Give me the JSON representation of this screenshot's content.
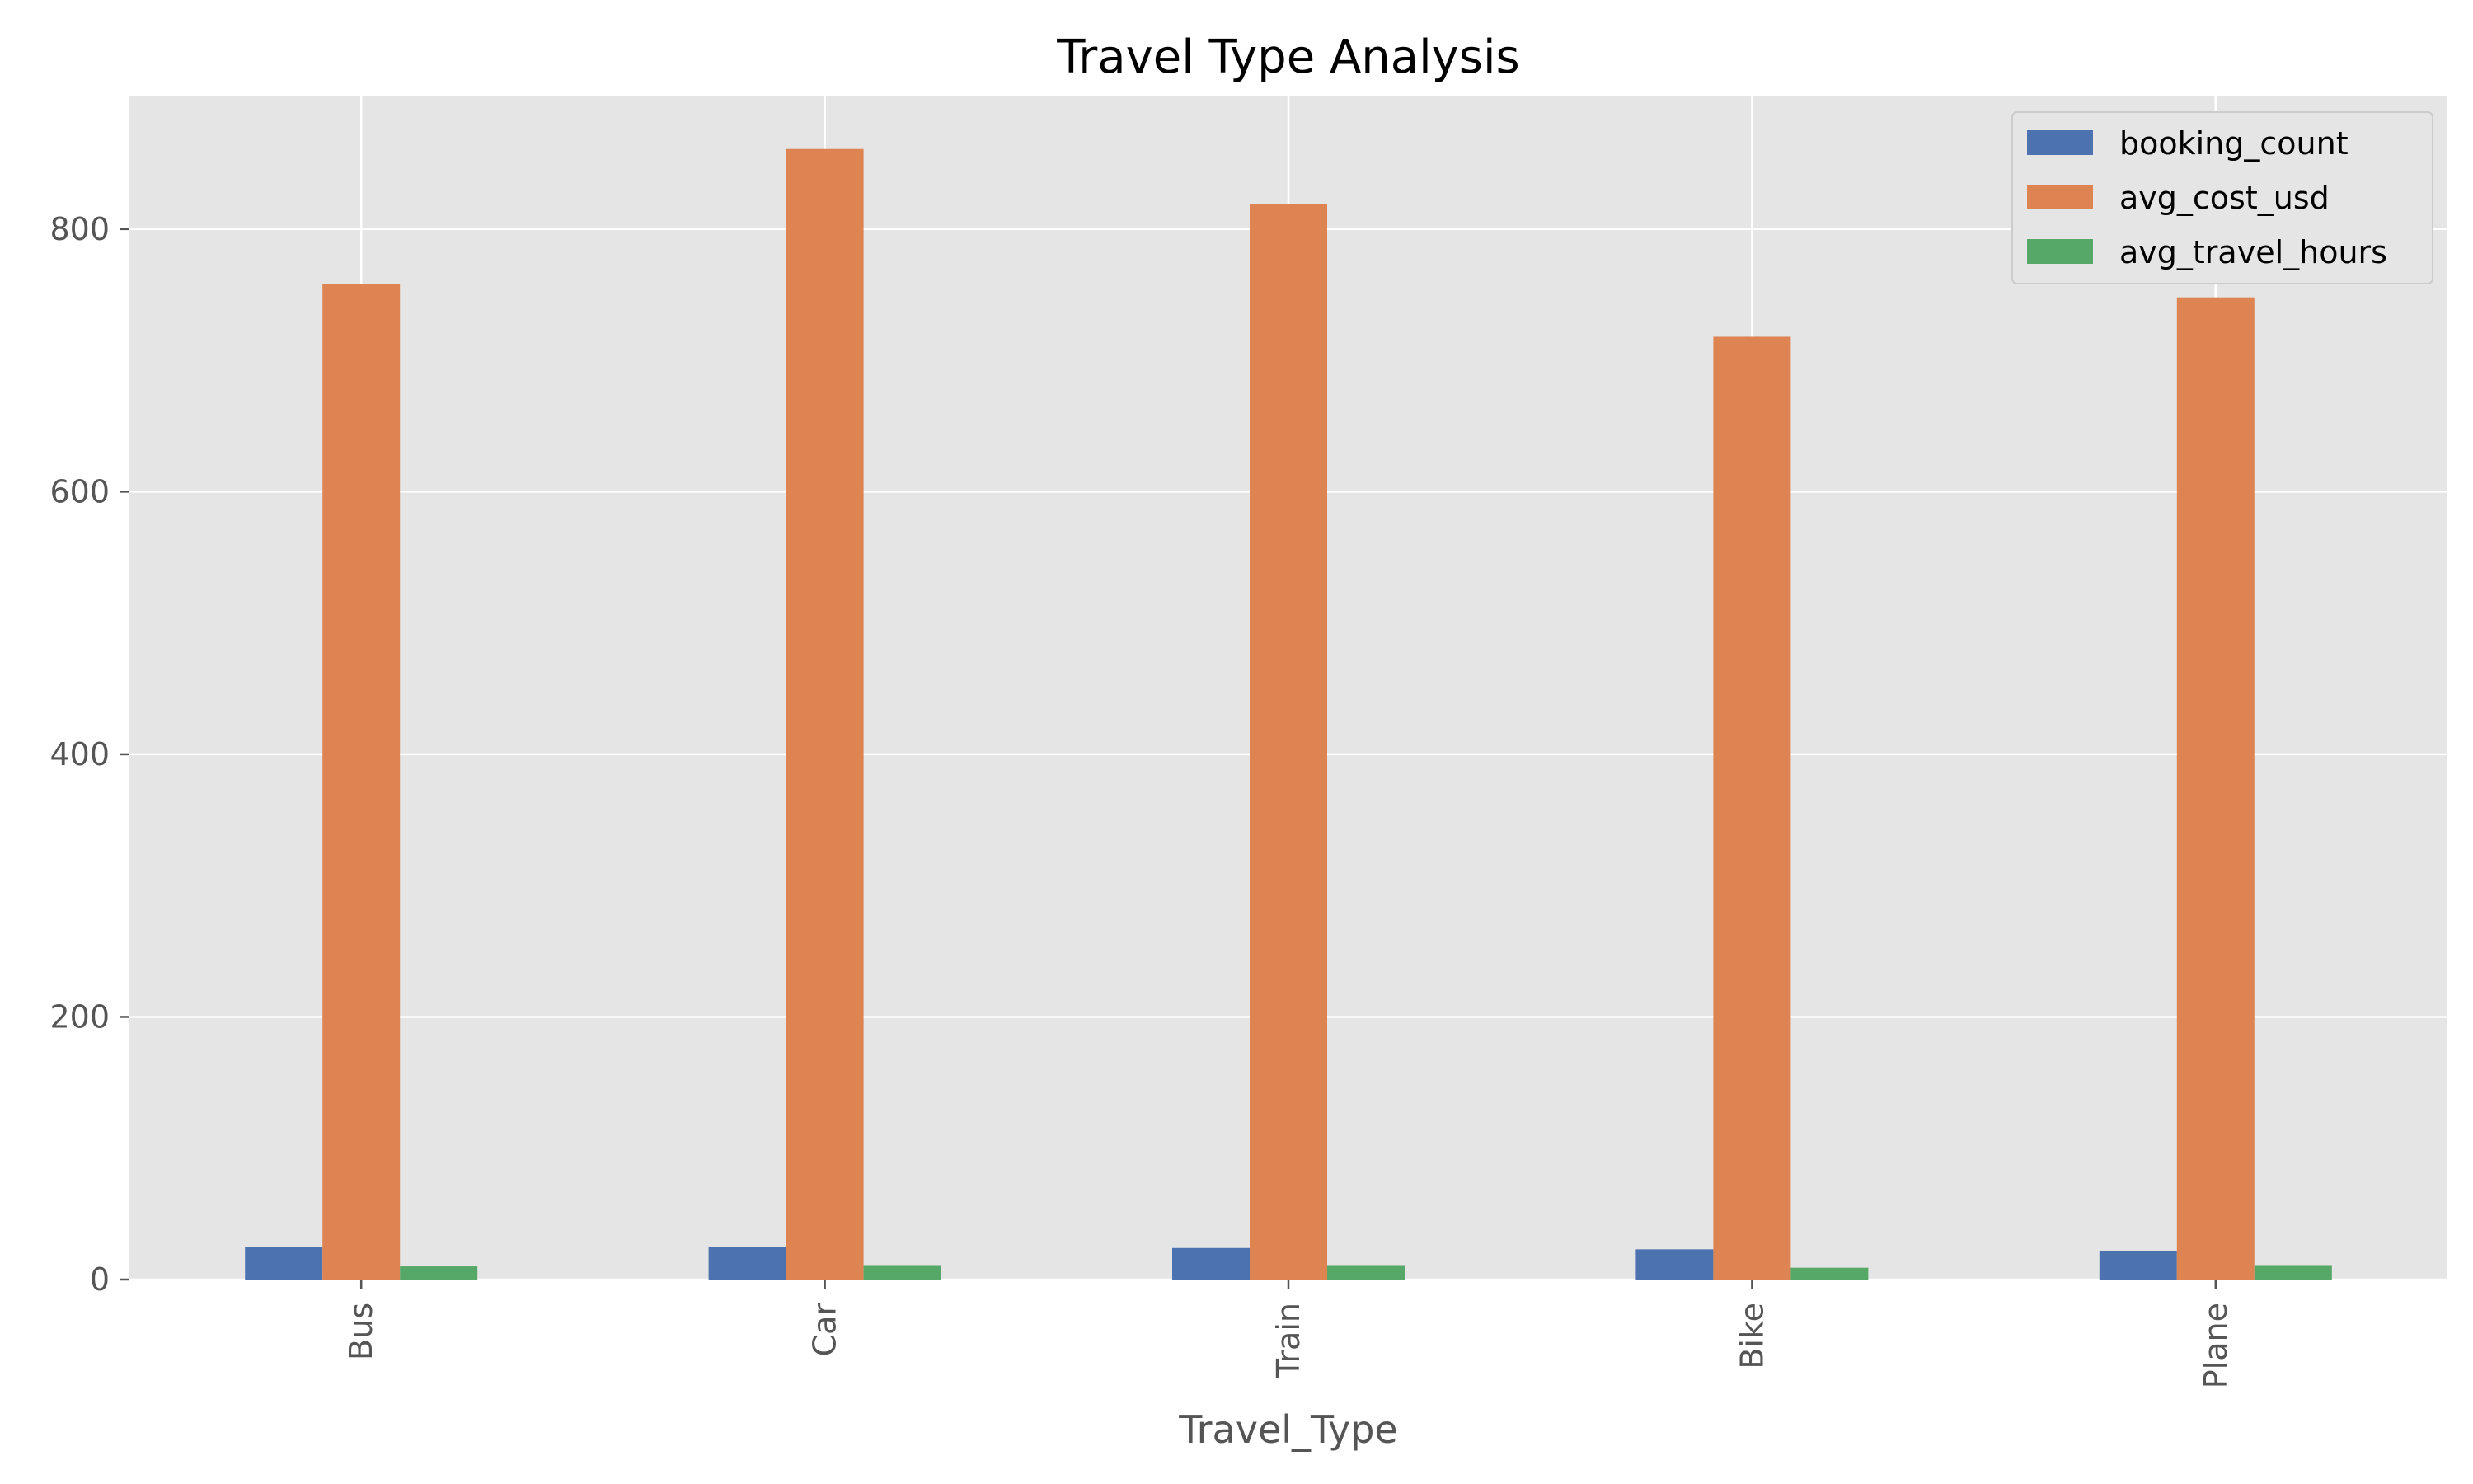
{
  "chart_data": {
    "type": "bar",
    "title": "Travel Type Analysis",
    "xlabel": "Travel_Type",
    "ylabel": "",
    "categories": [
      "Bus",
      "Car",
      "Train",
      "Bike",
      "Plane"
    ],
    "series": [
      {
        "name": "booking_count",
        "values": [
          25,
          25,
          24,
          23,
          22
        ]
      },
      {
        "name": "avg_cost_usd",
        "values": [
          758,
          861,
          819,
          718,
          748
        ]
      },
      {
        "name": "avg_travel_hours",
        "values": [
          10,
          11,
          11,
          9,
          11
        ]
      }
    ],
    "ylim": [
      0,
      901
    ],
    "yticks": [
      0,
      200,
      400,
      600,
      800
    ],
    "grid": true,
    "legend": "top-right",
    "colors": {
      "background": "#e5e5e5",
      "grid": "#ffffff",
      "series": [
        "#4c72b0",
        "#dd8452",
        "#55a868"
      ]
    }
  }
}
